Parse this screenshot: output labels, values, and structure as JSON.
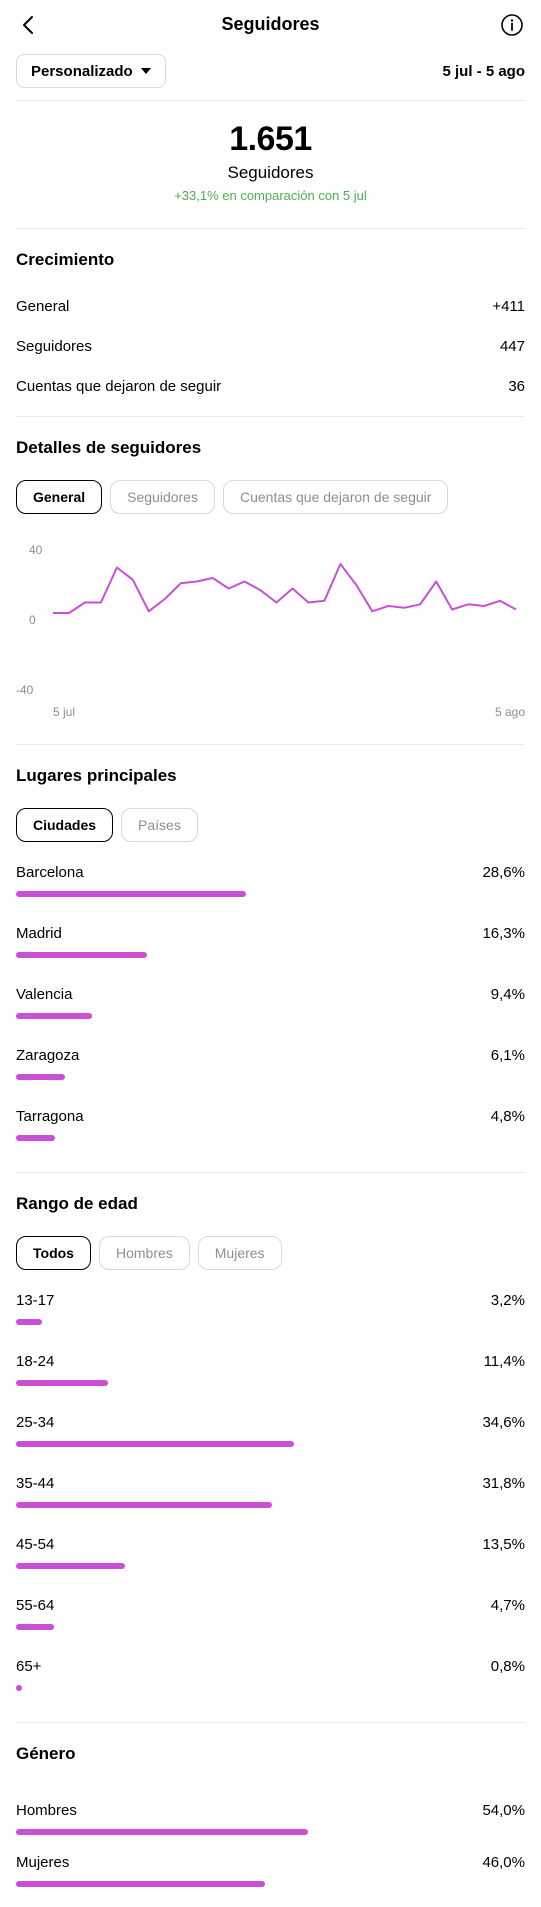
{
  "header": {
    "title": "Seguidores",
    "back_icon": "chevron-left-icon",
    "info_icon": "info-circle-icon"
  },
  "period": {
    "selected": "Personalizado",
    "range": "5 jul - 5 ago"
  },
  "summary": {
    "total": "1.651",
    "label": "Seguidores",
    "change": "+33,1% en comparación con 5 jul",
    "change_color": "#4caf50"
  },
  "growth": {
    "title": "Crecimiento",
    "rows": [
      {
        "label": "General",
        "value": "+411"
      },
      {
        "label": "Seguidores",
        "value": "447"
      },
      {
        "label": "Cuentas que dejaron de seguir",
        "value": "36"
      }
    ]
  },
  "details": {
    "title": "Detalles de seguidores",
    "tabs": [
      "General",
      "Seguidores",
      "Cuentas que dejaron de seguir"
    ],
    "active_tab": 0
  },
  "chart_data": {
    "type": "line",
    "x_start_label": "5 jul",
    "x_end_label": "5 ago",
    "y_ticks": [
      "40",
      "0",
      "-40"
    ],
    "ylim": [
      -40,
      40
    ],
    "color": "#c94fd6",
    "series": [
      {
        "values": [
          4,
          4,
          10,
          10,
          30,
          23,
          5,
          12,
          21,
          22,
          24,
          18,
          22,
          17,
          10,
          18,
          10,
          11,
          32,
          20,
          5,
          8,
          7,
          9,
          22,
          6,
          9,
          8,
          11,
          6
        ]
      }
    ]
  },
  "places": {
    "title": "Lugares principales",
    "tabs": [
      "Ciudades",
      "Países"
    ],
    "active_tab": 0,
    "items": [
      {
        "label": "Barcelona",
        "value": "28,6%",
        "pct": 28.6
      },
      {
        "label": "Madrid",
        "value": "16,3%",
        "pct": 16.3
      },
      {
        "label": "Valencia",
        "value": "9,4%",
        "pct": 9.4
      },
      {
        "label": "Zaragoza",
        "value": "6,1%",
        "pct": 6.1
      },
      {
        "label": "Tarragona",
        "value": "4,8%",
        "pct": 4.8
      }
    ]
  },
  "age": {
    "title": "Rango de edad",
    "tabs": [
      "Todos",
      "Hombres",
      "Mujeres"
    ],
    "active_tab": 0,
    "items": [
      {
        "label": "13-17",
        "value": "3,2%",
        "pct": 3.2
      },
      {
        "label": "18-24",
        "value": "11,4%",
        "pct": 11.4
      },
      {
        "label": "25-34",
        "value": "34,6%",
        "pct": 34.6
      },
      {
        "label": "35-44",
        "value": "31,8%",
        "pct": 31.8
      },
      {
        "label": "45-54",
        "value": "13,5%",
        "pct": 13.5
      },
      {
        "label": "55-64",
        "value": "4,7%",
        "pct": 4.7
      },
      {
        "label": "65+",
        "value": "0,8%",
        "pct": 0.8
      }
    ]
  },
  "gender": {
    "title": "Género",
    "items": [
      {
        "label": "Hombres",
        "value": "54,0%",
        "pct": 54.0
      },
      {
        "label": "Mujeres",
        "value": "46,0%",
        "pct": 46.0
      }
    ]
  },
  "accent_color": "#c94fd6"
}
